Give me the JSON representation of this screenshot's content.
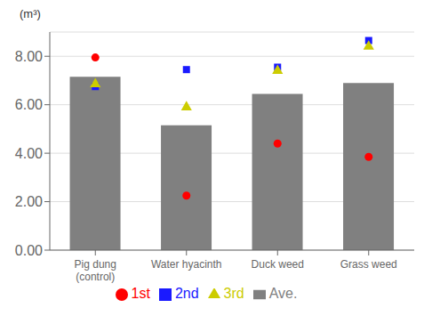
{
  "chart_data": {
    "type": "bar",
    "ylabel": "(m³)",
    "categories": [
      "Pig dung\n(control)",
      "Water hyacinth",
      "Duck weed",
      "Grass weed"
    ],
    "series": [
      {
        "name": "Ave.",
        "type": "bar",
        "color": "#808080",
        "values": [
          7.15,
          5.15,
          6.45,
          6.9
        ]
      },
      {
        "name": "1st",
        "type": "scatter",
        "marker": "circle",
        "color": "#ff0000",
        "values": [
          7.95,
          2.25,
          4.4,
          3.85
        ]
      },
      {
        "name": "2nd",
        "type": "scatter",
        "marker": "square",
        "color": "#1a1aff",
        "values": [
          6.75,
          7.45,
          7.55,
          8.65
        ]
      },
      {
        "name": "3rd",
        "type": "scatter",
        "marker": "triangle",
        "color": "#cccc00",
        "values": [
          6.85,
          5.9,
          7.4,
          8.4
        ]
      }
    ],
    "ylim": [
      0,
      9.0
    ],
    "yticks": [
      {
        "value": 0.0,
        "label": "0.00"
      },
      {
        "value": 2.0,
        "label": "2.00"
      },
      {
        "value": 4.0,
        "label": "4.00"
      },
      {
        "value": 6.0,
        "label": "6.00"
      },
      {
        "value": 8.0,
        "label": "8.00"
      }
    ],
    "grid": true,
    "legend": "bottom"
  }
}
